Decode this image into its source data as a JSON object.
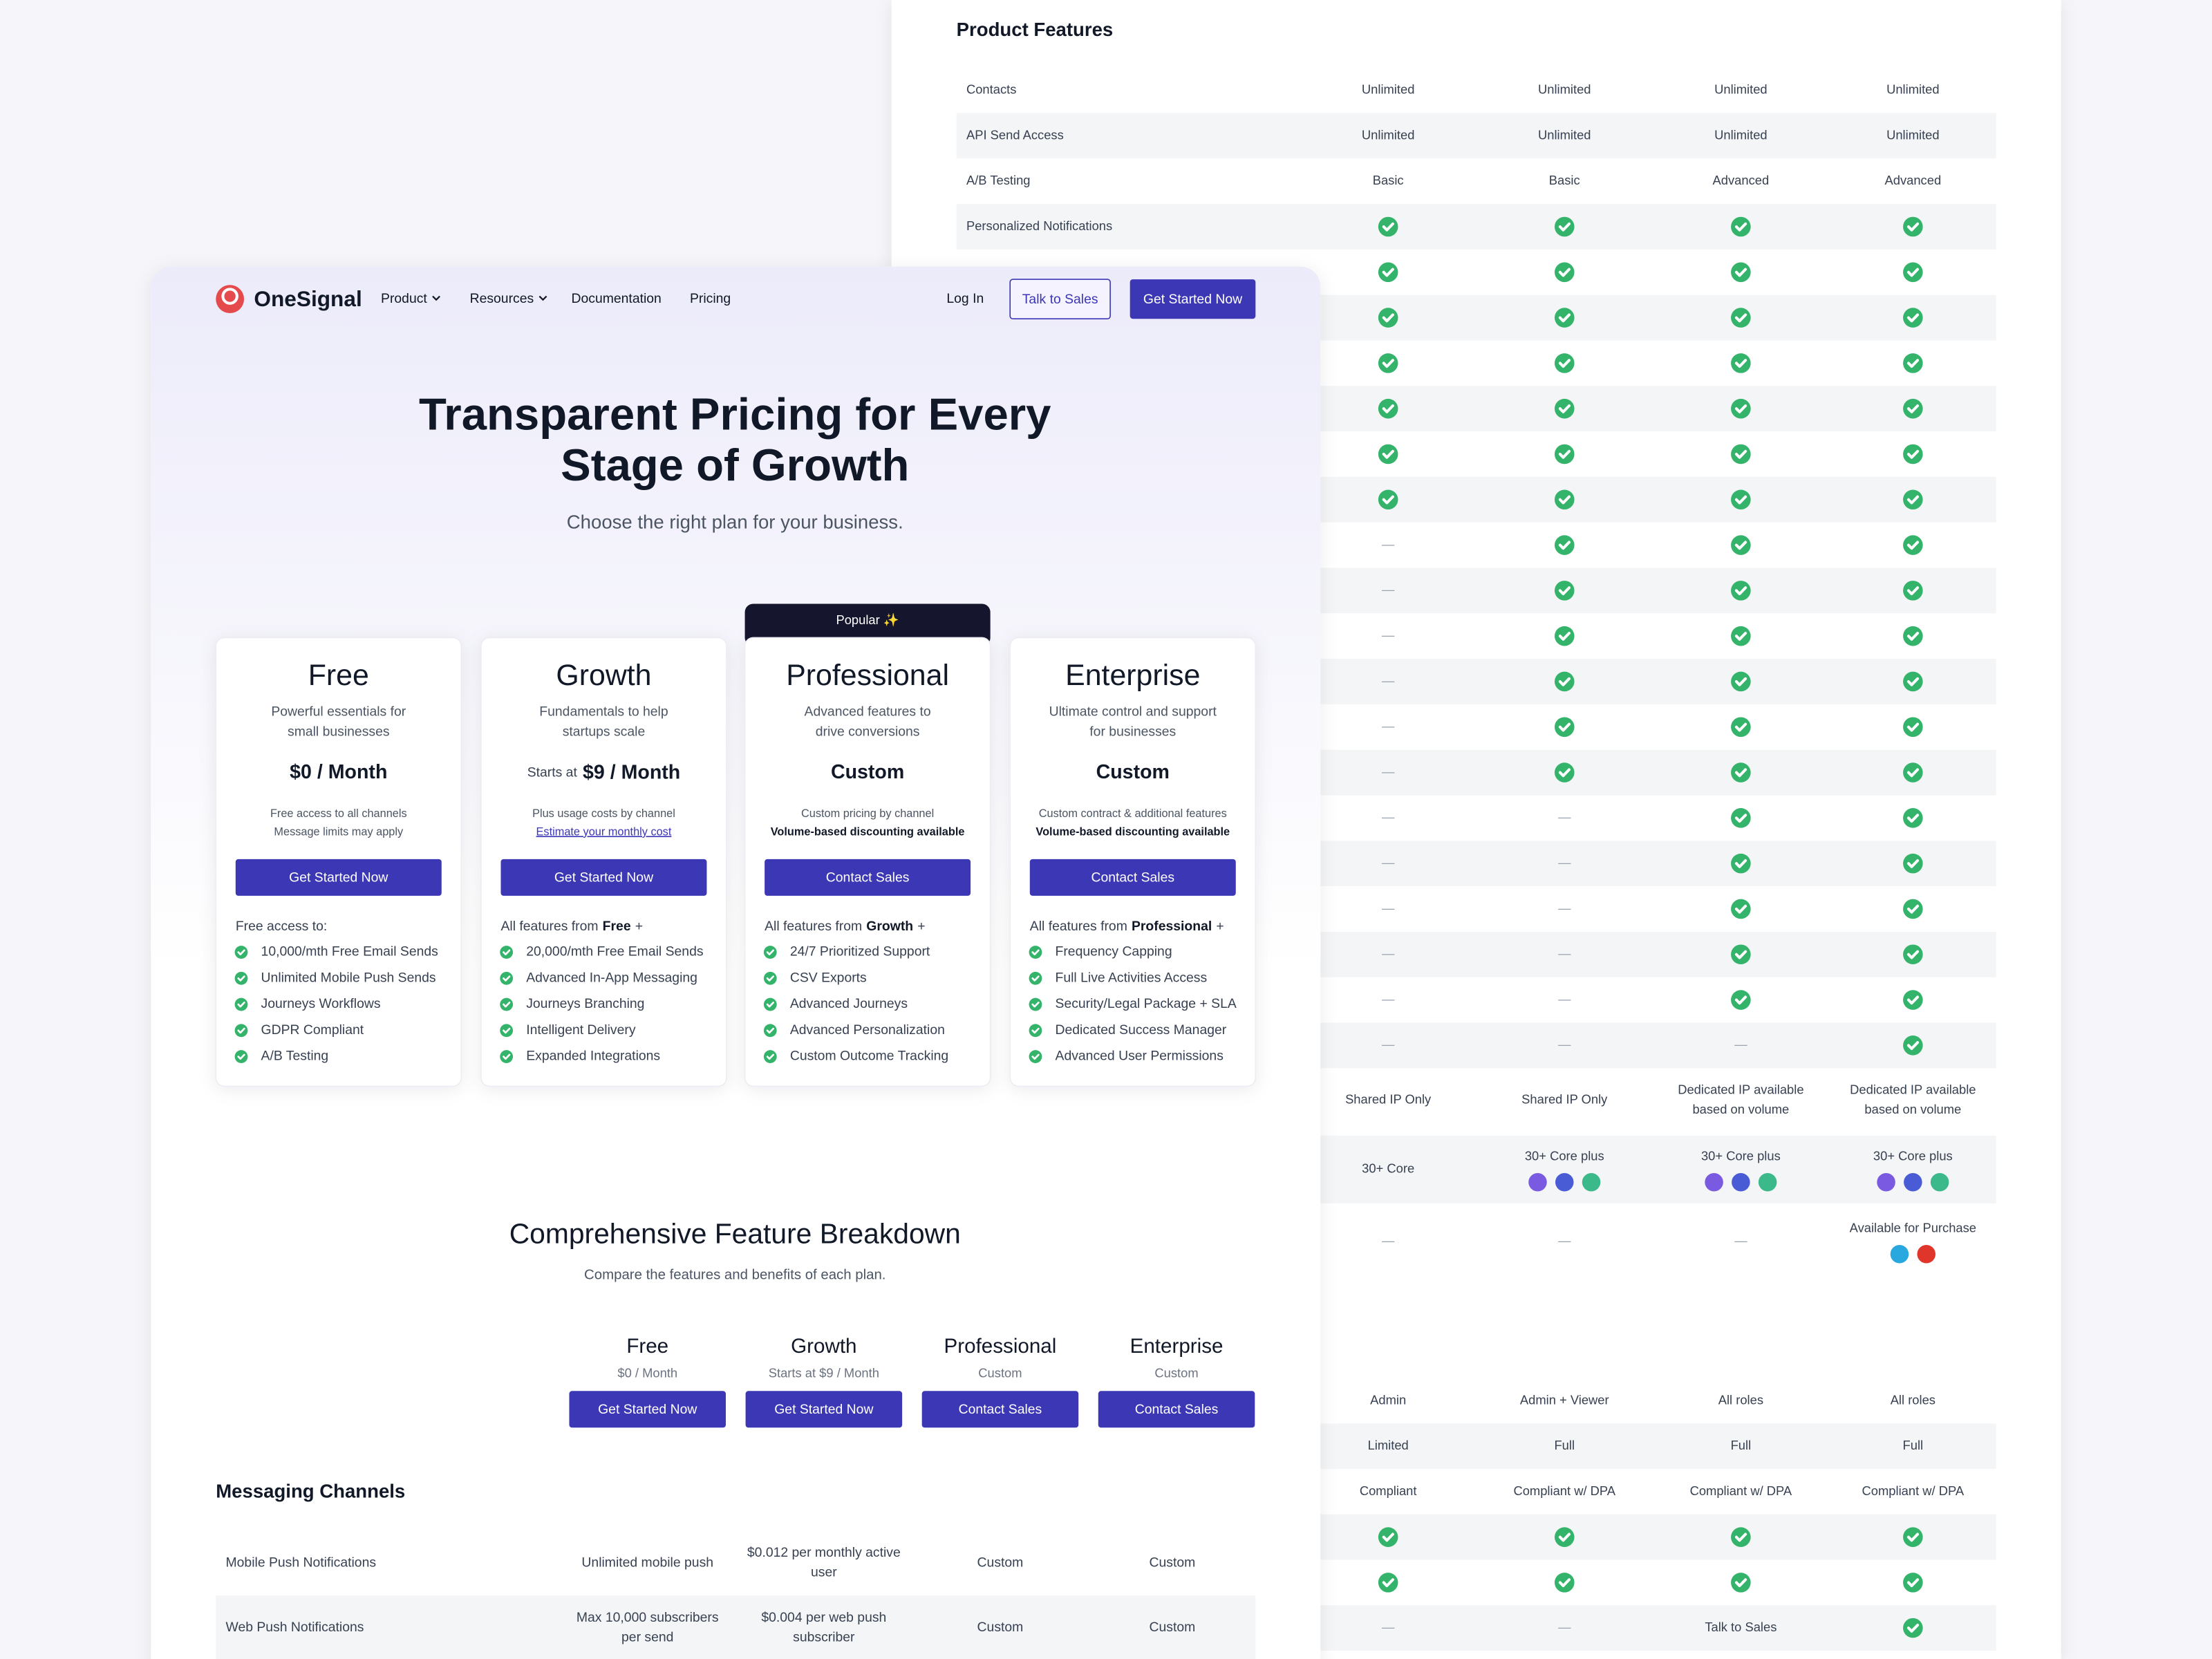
{
  "back_panel": {
    "title": "Product Features",
    "rows": [
      {
        "label": "Contacts",
        "cells": [
          "Unlimited",
          "Unlimited",
          "Unlimited",
          "Unlimited"
        ]
      },
      {
        "label": "API Send Access",
        "cells": [
          "Unlimited",
          "Unlimited",
          "Unlimited",
          "Unlimited"
        ]
      },
      {
        "label": "A/B Testing",
        "cells": [
          "Basic",
          "Basic",
          "Advanced",
          "Advanced"
        ]
      },
      {
        "label": "Personalized Notifications",
        "cells": [
          true,
          true,
          true,
          true
        ]
      },
      {
        "cells": [
          true,
          true,
          true,
          true
        ]
      },
      {
        "cells": [
          true,
          true,
          true,
          true
        ]
      },
      {
        "cells": [
          true,
          true,
          true,
          true
        ]
      },
      {
        "cells": [
          true,
          true,
          true,
          true
        ]
      },
      {
        "cells": [
          true,
          true,
          true,
          true
        ]
      },
      {
        "cells": [
          true,
          true,
          true,
          true
        ]
      },
      {
        "cells": [
          "—",
          true,
          true,
          true
        ]
      },
      {
        "cells": [
          "—",
          true,
          true,
          true
        ]
      },
      {
        "cells": [
          "—",
          true,
          true,
          true
        ]
      },
      {
        "cells": [
          "—",
          true,
          true,
          true
        ]
      },
      {
        "cells": [
          "—",
          true,
          true,
          true
        ]
      },
      {
        "cells": [
          "—",
          true,
          true,
          true
        ]
      },
      {
        "cells": [
          "—",
          "—",
          true,
          true
        ]
      },
      {
        "cells": [
          "—",
          "—",
          true,
          true
        ]
      },
      {
        "cells": [
          "—",
          "—",
          true,
          true
        ]
      },
      {
        "cells": [
          "—",
          "—",
          true,
          true
        ]
      },
      {
        "cells": [
          "—",
          "—",
          true,
          true
        ]
      },
      {
        "cells": [
          "—",
          "—",
          "—",
          true
        ]
      },
      {
        "cells": [
          [
            "Shared IP Only"
          ],
          [
            "Shared IP Only"
          ],
          [
            "Dedicated IP available",
            "based on volume"
          ],
          [
            "Dedicated IP available",
            "based on volume"
          ]
        ]
      },
      {
        "cells": [
          [
            "30+ Core"
          ],
          {
            "text": "30+ Core plus",
            "icons": [
              "#7a5ae0",
              "#4a5bd6",
              "#3bb98a"
            ]
          },
          {
            "text": "30+ Core plus",
            "icons": [
              "#7a5ae0",
              "#4a5bd6",
              "#3bb98a"
            ]
          },
          {
            "text": "30+ Core plus",
            "icons": [
              "#7a5ae0",
              "#4a5bd6",
              "#3bb98a"
            ]
          }
        ]
      },
      {
        "cells": [
          "—",
          "—",
          "—",
          {
            "text": "Available for Purchase",
            "icons": [
              "#29a8e0",
              "#e0352b"
            ]
          }
        ]
      },
      {
        "cells": [
          "Admin",
          "Admin + Viewer",
          "All roles",
          "All roles"
        ]
      },
      {
        "cells": [
          "Limited",
          "Full",
          "Full",
          "Full"
        ]
      },
      {
        "cells": [
          "Compliant",
          "Compliant w/ DPA",
          "Compliant w/ DPA",
          "Compliant w/ DPA"
        ]
      },
      {
        "cells": [
          true,
          true,
          true,
          true
        ]
      },
      {
        "cells": [
          true,
          true,
          true,
          true
        ]
      },
      {
        "cells": [
          "—",
          "—",
          "Talk to Sales",
          true
        ]
      }
    ]
  },
  "nav": {
    "logo": "OneSignal",
    "links": [
      "Product",
      "Resources",
      "Documentation",
      "Pricing"
    ],
    "login": "Log In",
    "sales": "Talk to Sales",
    "cta": "Get Started Now"
  },
  "hero": {
    "title": [
      "Transparent Pricing for Every",
      "Stage of Growth"
    ],
    "subtitle": "Choose the right plan for your business."
  },
  "badge": "Popular ✨",
  "cards": [
    {
      "name": "Free",
      "desc": [
        "Powerful essentials for",
        "small businesses"
      ],
      "price": "$0 / Month",
      "notes": [
        "Free access to all channels",
        "Message limits may apply"
      ],
      "button": "Get Started Now",
      "intro": {
        "prefix": "Free access to:"
      },
      "features": [
        "10,000/mth Free Email Sends",
        "Unlimited Mobile Push Sends",
        "Journeys Workflows",
        "GDPR Compliant",
        "A/B Testing"
      ]
    },
    {
      "name": "Growth",
      "desc": [
        "Fundamentals to help",
        "startups scale"
      ],
      "price_prefix": "Starts at",
      "price": "$9 / Month",
      "notes": [
        "Plus usage costs by channel",
        "Estimate your monthly cost"
      ],
      "button": "Get Started Now",
      "intro": {
        "prefix": "All features from",
        "plan": "Free",
        "suffix": "+"
      },
      "features": [
        "20,000/mth Free Email Sends",
        "Advanced In-App Messaging",
        "Journeys Branching",
        "Intelligent Delivery",
        "Expanded Integrations"
      ]
    },
    {
      "name": "Professional",
      "desc": [
        "Advanced features to",
        "drive conversions"
      ],
      "price": "Custom",
      "notes": [
        "Custom pricing by channel",
        "Volume-based discounting available"
      ],
      "button": "Contact Sales",
      "intro": {
        "prefix": "All features from",
        "plan": "Growth",
        "suffix": "+"
      },
      "features": [
        "24/7 Prioritized Support",
        "CSV Exports",
        "Advanced Journeys",
        "Advanced Personalization",
        "Custom Outcome Tracking"
      ]
    },
    {
      "name": "Enterprise",
      "desc": [
        "Ultimate control and support",
        "for businesses"
      ],
      "price": "Custom",
      "notes": [
        "Custom contract & additional features",
        "Volume-based discounting available"
      ],
      "button": "Contact Sales",
      "intro": {
        "prefix": "All features from",
        "plan": "Professional",
        "suffix": "+"
      },
      "features": [
        "Frequency Capping",
        "Full Live Activities Access",
        "Security/Legal Package + SLA",
        "Dedicated Success Manager",
        "Advanced User Permissions"
      ]
    }
  ],
  "breakdown": {
    "title": "Comprehensive Feature Breakdown",
    "subtitle": "Compare the features and benefits of each plan.",
    "columns": [
      {
        "name": "Free",
        "price": "$0 / Month",
        "button": "Get Started Now"
      },
      {
        "name": "Growth",
        "price": "Starts at $9 / Month",
        "button": "Get Started Now"
      },
      {
        "name": "Professional",
        "price": "Custom",
        "button": "Contact Sales"
      },
      {
        "name": "Enterprise",
        "price": "Custom",
        "button": "Contact Sales"
      }
    ],
    "section": "Messaging Channels",
    "rows": [
      {
        "label": "Mobile Push Notifications",
        "cells": [
          [
            "Unlimited mobile push"
          ],
          [
            "$0.012 per monthly active",
            "user"
          ],
          [
            "Custom"
          ],
          [
            "Custom"
          ]
        ]
      },
      {
        "label": "Web Push Notifications",
        "cells": [
          [
            "Max 10,000 subscribers",
            "per send"
          ],
          [
            "$0.004 per web push",
            "subscriber"
          ],
          [
            "Custom"
          ],
          [
            "Custom"
          ]
        ]
      }
    ]
  }
}
